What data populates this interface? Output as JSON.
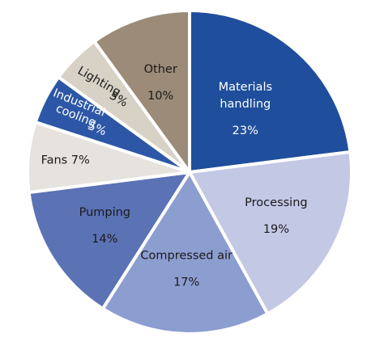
{
  "chart_data": {
    "type": "pie",
    "slices": [
      {
        "label": "Materials handling",
        "value": 23,
        "value_label": "23%",
        "color": "#1f4e9c",
        "text_color": "#ffffff"
      },
      {
        "label": "Processing",
        "value": 19,
        "value_label": "19%",
        "color": "#c3c8e5",
        "text_color": "#1a1a1a"
      },
      {
        "label": "Compressed air",
        "value": 17,
        "value_label": "17%",
        "color": "#8c9dd0",
        "text_color": "#1a1a1a"
      },
      {
        "label": "Pumping",
        "value": 14,
        "value_label": "14%",
        "color": "#5b72b5",
        "text_color": "#1a1a1a"
      },
      {
        "label": "Fans",
        "value": 7,
        "value_label": "7%",
        "color": "#e6e3de",
        "text_color": "#1a1a1a"
      },
      {
        "label": "Industrial cooling",
        "value": 5,
        "value_label": "5%",
        "color": "#2d57a6",
        "text_color": "#ffffff"
      },
      {
        "label": "Lighting",
        "value": 5,
        "value_label": "5%",
        "color": "#d8d1c6",
        "text_color": "#1a1a1a"
      },
      {
        "label": "Other",
        "value": 10,
        "value_label": "10%",
        "color": "#9b8b78",
        "text_color": "#1a1a1a"
      }
    ],
    "start_angle": "12 o'clock",
    "direction": "clockwise"
  }
}
